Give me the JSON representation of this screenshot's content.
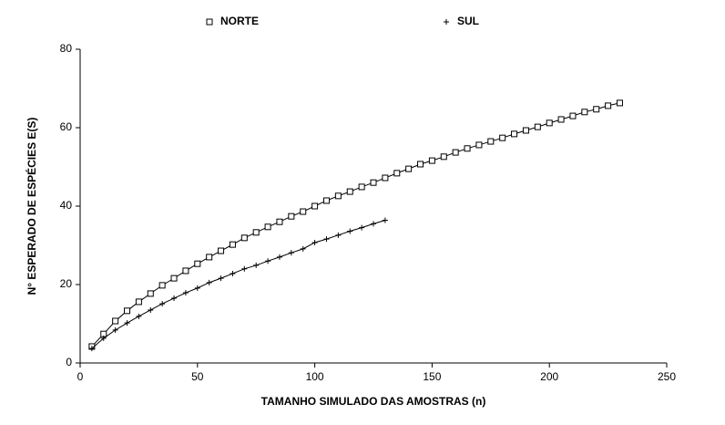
{
  "chart_data": {
    "type": "line",
    "xlabel": "TAMANHO SIMULADO DAS AMOSTRAS (n)",
    "ylabel": "N° ESPERADO DE ESPÉCIES E(S)",
    "xlim": [
      0,
      250
    ],
    "xticks": [
      0,
      50,
      100,
      150,
      200,
      250
    ],
    "ylim": [
      0,
      80
    ],
    "yticks": [
      0,
      20,
      40,
      60,
      80
    ],
    "legend": "top",
    "series": [
      {
        "name": "NORTE",
        "color": "#000000",
        "marker": "square",
        "x": [
          5,
          10,
          15,
          20,
          25,
          30,
          35,
          40,
          45,
          50,
          55,
          60,
          65,
          70,
          75,
          80,
          85,
          90,
          95,
          100,
          105,
          110,
          115,
          120,
          125,
          130,
          135,
          140,
          145,
          150,
          155,
          160,
          165,
          170,
          175,
          180,
          185,
          190,
          195,
          200,
          205,
          210,
          215,
          220,
          225,
          230
        ],
        "values": [
          4.2,
          7.4,
          10.7,
          13.3,
          15.6,
          17.7,
          19.8,
          21.6,
          23.5,
          25.3,
          27.0,
          28.6,
          30.2,
          31.9,
          33.3,
          34.7,
          36.0,
          37.4,
          38.6,
          40.0,
          41.4,
          42.6,
          43.7,
          44.9,
          46.0,
          47.2,
          48.4,
          49.5,
          50.7,
          51.6,
          52.6,
          53.7,
          54.7,
          55.6,
          56.5,
          57.4,
          58.4,
          59.3,
          60.2,
          61.2,
          62.1,
          63.0,
          64.0,
          64.7,
          65.6,
          66.3
        ]
      },
      {
        "name": "SUL",
        "color": "#000000",
        "marker": "plus",
        "x": [
          5,
          10,
          15,
          20,
          25,
          30,
          35,
          40,
          45,
          50,
          55,
          60,
          65,
          70,
          75,
          80,
          85,
          90,
          95,
          100,
          105,
          110,
          115,
          120,
          125,
          130
        ],
        "values": [
          3.7,
          6.3,
          8.4,
          10.2,
          11.9,
          13.5,
          15.1,
          16.5,
          17.9,
          19.1,
          20.5,
          21.6,
          22.8,
          24.0,
          24.9,
          26.0,
          27.0,
          28.1,
          29.1,
          30.7,
          31.6,
          32.6,
          33.6,
          34.5,
          35.5,
          36.4
        ]
      }
    ]
  }
}
